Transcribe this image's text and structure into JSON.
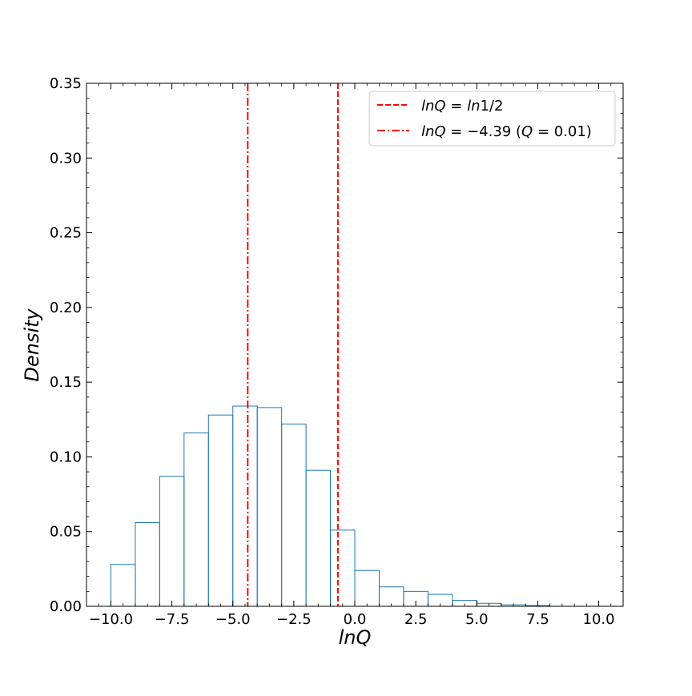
{
  "chart_data": {
    "type": "histogram",
    "xlabel": "lnQ",
    "ylabel": "Density",
    "xlim": [
      -11.0,
      11.0
    ],
    "ylim": [
      0.0,
      0.35
    ],
    "xticks": [
      -10.0,
      -7.5,
      -5.0,
      -2.5,
      0.0,
      2.5,
      5.0,
      7.5,
      10.0
    ],
    "xtick_labels": [
      "−10.0",
      "−7.5",
      "−5.0",
      "−2.5",
      "0.0",
      "2.5",
      "5.0",
      "7.5",
      "10.0"
    ],
    "yticks": [
      0.0,
      0.05,
      0.1,
      0.15,
      0.2,
      0.25,
      0.3,
      0.35
    ],
    "ytick_labels": [
      "0.00",
      "0.05",
      "0.10",
      "0.15",
      "0.20",
      "0.25",
      "0.30",
      "0.35"
    ],
    "histogram": {
      "bin_edges": [
        -10,
        -9,
        -8,
        -7,
        -6,
        -5,
        -4,
        -3,
        -2,
        -1,
        0,
        1,
        2,
        3,
        4,
        5,
        6,
        7,
        8,
        9,
        10
      ],
      "density": [
        0.028,
        0.056,
        0.087,
        0.116,
        0.128,
        0.134,
        0.133,
        0.122,
        0.091,
        0.051,
        0.024,
        0.013,
        0.01,
        0.008,
        0.004,
        0.002,
        0.001,
        0.0005,
        0.0,
        0.0
      ],
      "color": "#1f77b4"
    },
    "vlines": [
      {
        "x": -0.693,
        "style": "dashed",
        "color": "#ff0000",
        "label": "lnQ = ln1/2"
      },
      {
        "x": -4.39,
        "style": "dashdot",
        "color": "#ff0000",
        "label": "lnQ = −4.39 (Q = 0.01)"
      }
    ],
    "legend_position": "top-right",
    "grid": false
  }
}
